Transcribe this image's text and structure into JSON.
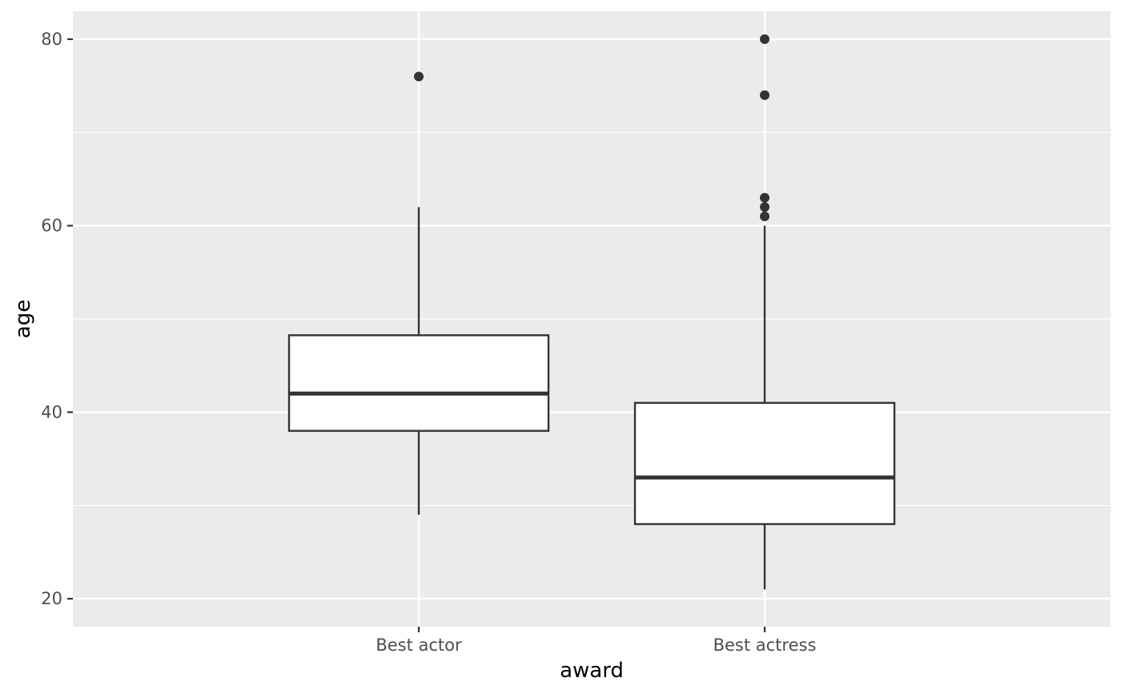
{
  "chart_data": {
    "type": "boxplot",
    "title": "",
    "xlabel": "award",
    "ylabel": "age",
    "ylim": [
      17,
      83
    ],
    "y_ticks": [
      20,
      40,
      60,
      80
    ],
    "y_ticks_labels": [
      "20",
      "40",
      "60",
      "80"
    ],
    "grid": true,
    "categories": [
      "Best actor",
      "Best actress"
    ],
    "boxes": [
      {
        "category": "Best actor",
        "q1": 38,
        "median": 42,
        "q3": 48.25,
        "whisker_low": 29,
        "whisker_high": 62,
        "outliers": [
          76
        ]
      },
      {
        "category": "Best actress",
        "q1": 28,
        "median": 33,
        "q3": 41,
        "whisker_low": 21,
        "whisker_high": 60,
        "outliers": [
          61,
          62,
          63,
          74,
          80
        ]
      }
    ],
    "colors": {
      "panel_background": "#ebebeb",
      "grid": "#ffffff",
      "box_fill": "#ffffff",
      "box_stroke": "#333333",
      "outlier": "#333333",
      "tick_text": "#4d4d4d",
      "tick_mark": "#333333"
    }
  }
}
